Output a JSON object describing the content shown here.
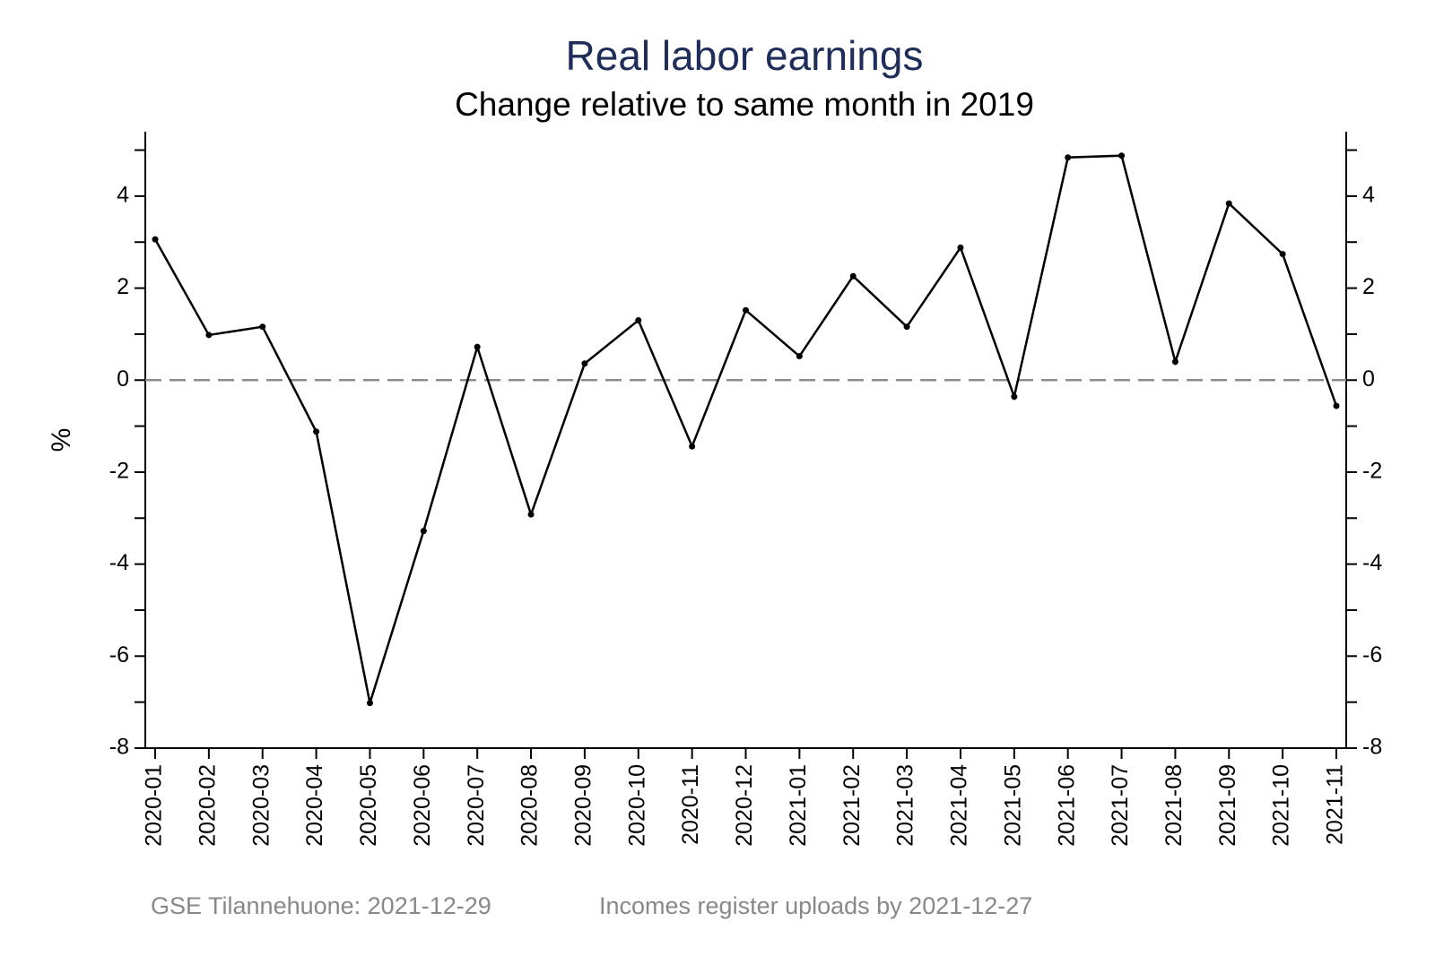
{
  "chart_data": {
    "type": "line",
    "title": "Real labor earnings",
    "subtitle": "Change relative to same month in 2019",
    "y_label": "%",
    "categories": [
      "2020-01",
      "2020-02",
      "2020-03",
      "2020-04",
      "2020-05",
      "2020-06",
      "2020-07",
      "2020-08",
      "2020-09",
      "2020-10",
      "2020-11",
      "2020-12",
      "2021-01",
      "2021-02",
      "2021-03",
      "2021-04",
      "2021-05",
      "2021-06",
      "2021-07",
      "2021-08",
      "2021-09",
      "2021-10",
      "2021-11"
    ],
    "values": [
      3.06,
      0.98,
      1.16,
      -1.12,
      -7.02,
      -3.28,
      0.72,
      -2.92,
      0.36,
      1.3,
      -1.44,
      1.52,
      0.52,
      2.26,
      1.16,
      2.88,
      -0.36,
      4.84,
      4.88,
      0.4,
      3.84,
      2.74,
      -0.56
    ],
    "color": "#000000",
    "ylim": [
      -8,
      5.4
    ],
    "yticks": [
      -8,
      -6,
      -4,
      -2,
      0,
      2,
      4
    ],
    "yminorticks": [
      -7,
      -5,
      -3,
      -1,
      1,
      3,
      5
    ],
    "reference_line": 0,
    "footnotes": [
      "GSE Tilannehuone: 2021-12-29",
      "Incomes register uploads by 2021-12-27"
    ]
  }
}
